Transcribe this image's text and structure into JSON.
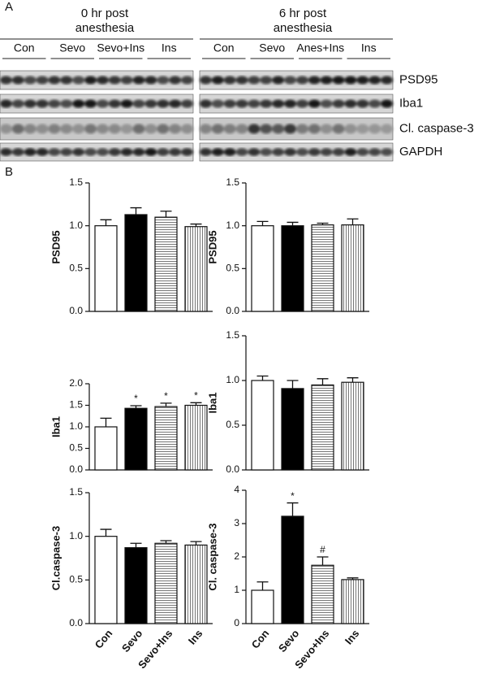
{
  "panel_a": {
    "label": "A",
    "groups": [
      {
        "title": [
          "0 hr post",
          "anesthesia"
        ],
        "lanes": [
          "Con",
          "Sevo",
          "Sevo+Ins",
          "Ins"
        ]
      },
      {
        "title": [
          "6 hr post",
          "anesthesia"
        ],
        "lanes": [
          "Con",
          "Sevo",
          "Anes+Ins",
          "Ins"
        ]
      }
    ],
    "rows": [
      "PSD95",
      "Iba1",
      "Cl. caspase-3",
      "GAPDH"
    ]
  },
  "panel_b": {
    "label": "B"
  },
  "chart_data": [
    {
      "type": "bar",
      "ylabel": "PSD95",
      "categories": [
        null,
        null,
        null,
        null
      ],
      "values": [
        1.0,
        1.13,
        1.1,
        0.99
      ],
      "errors": [
        0.07,
        0.08,
        0.07,
        0.03
      ],
      "fills": [
        "white",
        "black",
        "hstripe",
        "vstripe"
      ],
      "ylim": [
        0,
        1.5
      ],
      "yticks": [
        {
          "value": 0,
          "label": "0.0"
        },
        {
          "value": 0.5,
          "label": "0.5"
        },
        {
          "value": 1,
          "label": "1.0"
        },
        {
          "value": 1.5,
          "label": "1.5"
        }
      ]
    },
    {
      "type": "bar",
      "ylabel": "PSD95",
      "categories": [
        null,
        null,
        null,
        null
      ],
      "values": [
        1.0,
        1.0,
        1.01,
        1.01
      ],
      "errors": [
        0.05,
        0.04,
        0.02,
        0.07
      ],
      "fills": [
        "white",
        "black",
        "hstripe",
        "vstripe"
      ],
      "ylim": [
        0,
        1.5
      ],
      "yticks": [
        {
          "value": 0,
          "label": "0.0"
        },
        {
          "value": 0.5,
          "label": "0.5"
        },
        {
          "value": 1,
          "label": "1.0"
        },
        {
          "value": 1.5,
          "label": "1.5"
        }
      ]
    },
    {
      "type": "bar",
      "ylabel": "Iba1",
      "categories": [
        null,
        null,
        null,
        null
      ],
      "values": [
        1.0,
        1.43,
        1.47,
        1.5
      ],
      "errors": [
        0.2,
        0.06,
        0.08,
        0.06
      ],
      "value_annotations": [
        null,
        "*",
        "*",
        "*"
      ],
      "fills": [
        "white",
        "black",
        "hstripe",
        "vstripe"
      ],
      "ylim": [
        0,
        2
      ],
      "yticks": [
        {
          "value": 0,
          "label": "0.0"
        },
        {
          "value": 0.5,
          "label": "0.5"
        },
        {
          "value": 1,
          "label": "1.0"
        },
        {
          "value": 1.5,
          "label": "1.5"
        },
        {
          "value": 2,
          "label": "2.0"
        }
      ]
    },
    {
      "type": "bar",
      "ylabel": "Iba1",
      "categories": [
        null,
        null,
        null,
        null
      ],
      "values": [
        1.0,
        0.91,
        0.95,
        0.98
      ],
      "errors": [
        0.05,
        0.09,
        0.07,
        0.05
      ],
      "fills": [
        "white",
        "black",
        "hstripe",
        "vstripe"
      ],
      "ylim": [
        0,
        1.5
      ],
      "yticks": [
        {
          "value": 0,
          "label": "0.0"
        },
        {
          "value": 0.5,
          "label": "0.5"
        },
        {
          "value": 1,
          "label": "1.0"
        },
        {
          "value": 1.5,
          "label": "1.5"
        }
      ]
    },
    {
      "type": "bar",
      "ylabel": "Cl.caspase-3",
      "categories": [
        "Con",
        "Sevo",
        "Sevo+Ins",
        "Ins"
      ],
      "values": [
        1.0,
        0.87,
        0.92,
        0.9
      ],
      "errors": [
        0.08,
        0.05,
        0.03,
        0.04
      ],
      "fills": [
        "white",
        "black",
        "hstripe",
        "vstripe"
      ],
      "ylim": [
        0,
        1.5
      ],
      "yticks": [
        {
          "value": 0,
          "label": "0.0"
        },
        {
          "value": 0.5,
          "label": "0.5"
        },
        {
          "value": 1,
          "label": "1.0"
        },
        {
          "value": 1.5,
          "label": "1.5"
        }
      ]
    },
    {
      "type": "bar",
      "ylabel": "Cl. caspase-3",
      "categories": [
        "Con",
        "Sevo",
        "Sevo+Ins",
        "Ins"
      ],
      "values": [
        1.0,
        3.22,
        1.75,
        1.32
      ],
      "errors": [
        0.25,
        0.4,
        0.25,
        0.05
      ],
      "value_annotations": [
        null,
        "*",
        "#",
        null
      ],
      "fills": [
        "white",
        "black",
        "hstripe",
        "vstripe"
      ],
      "ylim": [
        0,
        4
      ],
      "yticks": [
        0,
        1,
        2,
        3,
        4
      ]
    }
  ]
}
